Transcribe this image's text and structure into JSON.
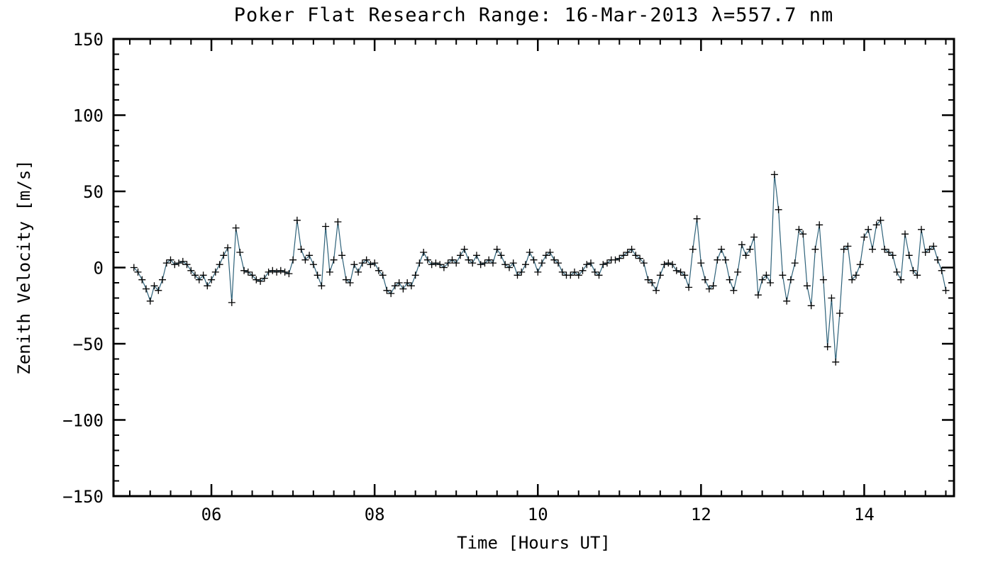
{
  "chart_data": {
    "type": "line",
    "title": "Poker Flat Research Range: 16-Mar-2013 λ=557.7 nm",
    "xlabel": "Time [Hours UT]",
    "ylabel": "Zenith Velocity [m/s]",
    "xlim": [
      4.8,
      15.1
    ],
    "ylim": [
      -150,
      150
    ],
    "x_ticks": {
      "values": [
        6,
        8,
        10,
        12,
        14
      ],
      "labels": [
        "06",
        "08",
        "10",
        "12",
        "14"
      ]
    },
    "y_ticks": {
      "values": [
        -150,
        -100,
        -50,
        0,
        50,
        100,
        150
      ],
      "labels": [
        "−150",
        "−100",
        "−50",
        "0",
        "50",
        "100",
        "150"
      ]
    },
    "x_minor_step": 0.25,
    "y_minor_step": 10,
    "grid": false,
    "legend": "none",
    "marker": "+",
    "marker_color": "#000000",
    "line_color": "#2e627a",
    "series_name": "zenith_velocity",
    "points": [
      [
        5.05,
        0
      ],
      [
        5.1,
        -3
      ],
      [
        5.15,
        -8
      ],
      [
        5.2,
        -14
      ],
      [
        5.25,
        -22
      ],
      [
        5.3,
        -12
      ],
      [
        5.35,
        -15
      ],
      [
        5.4,
        -8
      ],
      [
        5.45,
        3
      ],
      [
        5.5,
        5
      ],
      [
        5.55,
        2
      ],
      [
        5.6,
        3
      ],
      [
        5.65,
        4
      ],
      [
        5.7,
        2
      ],
      [
        5.75,
        -2
      ],
      [
        5.8,
        -5
      ],
      [
        5.85,
        -8
      ],
      [
        5.9,
        -5
      ],
      [
        5.95,
        -12
      ],
      [
        6.0,
        -8
      ],
      [
        6.05,
        -3
      ],
      [
        6.1,
        2
      ],
      [
        6.15,
        8
      ],
      [
        6.2,
        13
      ],
      [
        6.25,
        -23
      ],
      [
        6.3,
        26
      ],
      [
        6.35,
        10
      ],
      [
        6.4,
        -2
      ],
      [
        6.45,
        -3
      ],
      [
        6.5,
        -5
      ],
      [
        6.55,
        -8
      ],
      [
        6.6,
        -9
      ],
      [
        6.65,
        -7
      ],
      [
        6.7,
        -3
      ],
      [
        6.75,
        -2
      ],
      [
        6.8,
        -3
      ],
      [
        6.85,
        -2
      ],
      [
        6.9,
        -3
      ],
      [
        6.95,
        -4
      ],
      [
        7.0,
        5
      ],
      [
        7.05,
        31
      ],
      [
        7.1,
        12
      ],
      [
        7.15,
        5
      ],
      [
        7.2,
        8
      ],
      [
        7.25,
        2
      ],
      [
        7.3,
        -5
      ],
      [
        7.35,
        -12
      ],
      [
        7.4,
        27
      ],
      [
        7.45,
        -3
      ],
      [
        7.5,
        5
      ],
      [
        7.55,
        30
      ],
      [
        7.6,
        8
      ],
      [
        7.65,
        -8
      ],
      [
        7.7,
        -10
      ],
      [
        7.75,
        2
      ],
      [
        7.8,
        -3
      ],
      [
        7.85,
        3
      ],
      [
        7.9,
        5
      ],
      [
        7.95,
        2
      ],
      [
        8.0,
        3
      ],
      [
        8.05,
        -2
      ],
      [
        8.1,
        -5
      ],
      [
        8.15,
        -15
      ],
      [
        8.2,
        -17
      ],
      [
        8.25,
        -12
      ],
      [
        8.3,
        -10
      ],
      [
        8.35,
        -14
      ],
      [
        8.4,
        -10
      ],
      [
        8.45,
        -12
      ],
      [
        8.5,
        -5
      ],
      [
        8.55,
        3
      ],
      [
        8.6,
        10
      ],
      [
        8.65,
        5
      ],
      [
        8.7,
        2
      ],
      [
        8.75,
        3
      ],
      [
        8.8,
        2
      ],
      [
        8.85,
        0
      ],
      [
        8.9,
        3
      ],
      [
        8.95,
        5
      ],
      [
        9.0,
        3
      ],
      [
        9.05,
        8
      ],
      [
        9.1,
        12
      ],
      [
        9.15,
        5
      ],
      [
        9.2,
        3
      ],
      [
        9.25,
        8
      ],
      [
        9.3,
        2
      ],
      [
        9.35,
        3
      ],
      [
        9.4,
        5
      ],
      [
        9.45,
        3
      ],
      [
        9.5,
        12
      ],
      [
        9.55,
        8
      ],
      [
        9.6,
        2
      ],
      [
        9.65,
        0
      ],
      [
        9.7,
        3
      ],
      [
        9.75,
        -5
      ],
      [
        9.8,
        -3
      ],
      [
        9.85,
        2
      ],
      [
        9.9,
        10
      ],
      [
        9.95,
        5
      ],
      [
        10.0,
        -3
      ],
      [
        10.05,
        3
      ],
      [
        10.1,
        8
      ],
      [
        10.15,
        10
      ],
      [
        10.2,
        5
      ],
      [
        10.25,
        3
      ],
      [
        10.3,
        -3
      ],
      [
        10.35,
        -5
      ],
      [
        10.4,
        -5
      ],
      [
        10.45,
        -3
      ],
      [
        10.5,
        -5
      ],
      [
        10.55,
        -2
      ],
      [
        10.6,
        2
      ],
      [
        10.65,
        3
      ],
      [
        10.7,
        -3
      ],
      [
        10.75,
        -5
      ],
      [
        10.8,
        2
      ],
      [
        10.85,
        3
      ],
      [
        10.9,
        5
      ],
      [
        10.95,
        5
      ],
      [
        11.0,
        6
      ],
      [
        11.05,
        8
      ],
      [
        11.1,
        10
      ],
      [
        11.15,
        12
      ],
      [
        11.2,
        8
      ],
      [
        11.25,
        6
      ],
      [
        11.3,
        3
      ],
      [
        11.35,
        -8
      ],
      [
        11.4,
        -10
      ],
      [
        11.45,
        -15
      ],
      [
        11.5,
        -5
      ],
      [
        11.55,
        2
      ],
      [
        11.6,
        3
      ],
      [
        11.65,
        2
      ],
      [
        11.7,
        -2
      ],
      [
        11.75,
        -3
      ],
      [
        11.8,
        -5
      ],
      [
        11.85,
        -13
      ],
      [
        11.9,
        12
      ],
      [
        11.95,
        32
      ],
      [
        12.0,
        3
      ],
      [
        12.05,
        -8
      ],
      [
        12.1,
        -14
      ],
      [
        12.15,
        -12
      ],
      [
        12.2,
        5
      ],
      [
        12.25,
        12
      ],
      [
        12.3,
        5
      ],
      [
        12.35,
        -8
      ],
      [
        12.4,
        -15
      ],
      [
        12.45,
        -3
      ],
      [
        12.5,
        15
      ],
      [
        12.55,
        8
      ],
      [
        12.6,
        12
      ],
      [
        12.65,
        20
      ],
      [
        12.7,
        -18
      ],
      [
        12.75,
        -8
      ],
      [
        12.8,
        -5
      ],
      [
        12.85,
        -10
      ],
      [
        12.9,
        61
      ],
      [
        12.95,
        38
      ],
      [
        13.0,
        -5
      ],
      [
        13.05,
        -22
      ],
      [
        13.1,
        -8
      ],
      [
        13.15,
        3
      ],
      [
        13.2,
        25
      ],
      [
        13.25,
        22
      ],
      [
        13.3,
        -12
      ],
      [
        13.35,
        -25
      ],
      [
        13.4,
        12
      ],
      [
        13.45,
        28
      ],
      [
        13.5,
        -8
      ],
      [
        13.55,
        -52
      ],
      [
        13.6,
        -20
      ],
      [
        13.65,
        -62
      ],
      [
        13.7,
        -30
      ],
      [
        13.75,
        12
      ],
      [
        13.8,
        14
      ],
      [
        13.85,
        -8
      ],
      [
        13.9,
        -5
      ],
      [
        13.95,
        2
      ],
      [
        14.0,
        20
      ],
      [
        14.05,
        25
      ],
      [
        14.1,
        12
      ],
      [
        14.15,
        28
      ],
      [
        14.2,
        31
      ],
      [
        14.25,
        12
      ],
      [
        14.3,
        10
      ],
      [
        14.35,
        8
      ],
      [
        14.4,
        -3
      ],
      [
        14.45,
        -8
      ],
      [
        14.5,
        22
      ],
      [
        14.55,
        8
      ],
      [
        14.6,
        -2
      ],
      [
        14.65,
        -5
      ],
      [
        14.7,
        25
      ],
      [
        14.75,
        10
      ],
      [
        14.8,
        12
      ],
      [
        14.85,
        14
      ],
      [
        14.9,
        5
      ],
      [
        14.95,
        -2
      ],
      [
        15.0,
        -15
      ]
    ]
  }
}
